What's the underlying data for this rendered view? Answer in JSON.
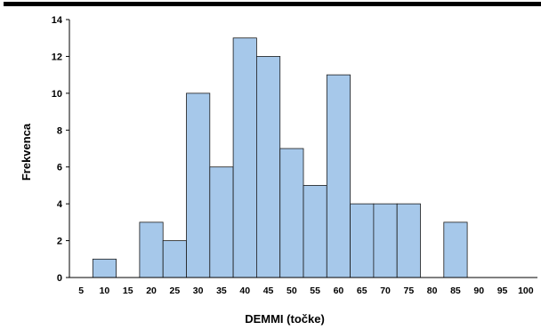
{
  "chart_data": {
    "type": "bar",
    "title": "",
    "xlabel": "DEMMI (točke)",
    "ylabel": "Frekvenca",
    "categories": [
      "5",
      "10",
      "15",
      "20",
      "25",
      "30",
      "35",
      "40",
      "45",
      "50",
      "55",
      "60",
      "65",
      "70",
      "75",
      "80",
      "85",
      "90",
      "95",
      "100"
    ],
    "values": [
      0,
      1,
      0,
      3,
      2,
      10,
      6,
      13,
      12,
      7,
      5,
      11,
      4,
      4,
      4,
      0,
      3,
      0,
      0,
      0
    ],
    "yticks": [
      0,
      2,
      4,
      6,
      8,
      10,
      12,
      14
    ],
    "ylim": [
      0,
      14
    ],
    "grid": false,
    "legend": "none",
    "bar_color": "#a6c8ea",
    "bar_edge_color": "#1a1a1a"
  }
}
